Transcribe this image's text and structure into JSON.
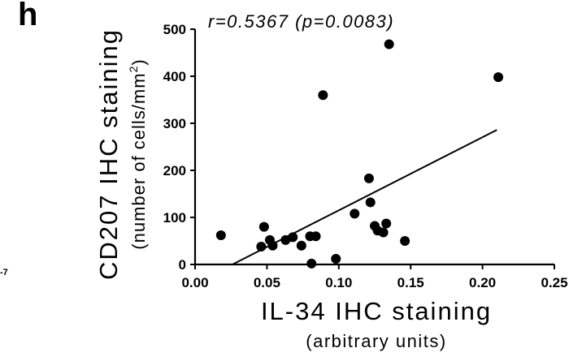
{
  "panel_label": "h",
  "corner_glyph": "-7",
  "chart_data": {
    "type": "scatter",
    "annotation": "r=0.5367 (p=0.0083)",
    "xlabel": "IL-34 IHC staining",
    "xlabel_sub": "(arbitrary units)",
    "ylabel": "CD207 IHC staining",
    "ylabel_sub": "(number of cells/mm",
    "ylabel_sub_sup": "2",
    "ylabel_sub_end": ")",
    "xlim": [
      0,
      0.25
    ],
    "ylim": [
      0,
      500
    ],
    "x_ticks": [
      0.0,
      0.05,
      0.1,
      0.15,
      0.2,
      0.25
    ],
    "x_tick_labels": [
      "0.00",
      "0.05",
      "0.10",
      "0.15",
      "0.20",
      "0.25"
    ],
    "y_ticks": [
      0,
      100,
      200,
      300,
      400,
      500
    ],
    "y_tick_labels": [
      "0",
      "100",
      "200",
      "300",
      "400",
      "500"
    ],
    "points": [
      {
        "x": 0.018,
        "y": 62
      },
      {
        "x": 0.046,
        "y": 38
      },
      {
        "x": 0.048,
        "y": 80
      },
      {
        "x": 0.052,
        "y": 52
      },
      {
        "x": 0.054,
        "y": 40
      },
      {
        "x": 0.063,
        "y": 52
      },
      {
        "x": 0.068,
        "y": 58
      },
      {
        "x": 0.074,
        "y": 40
      },
      {
        "x": 0.08,
        "y": 60
      },
      {
        "x": 0.081,
        "y": 2
      },
      {
        "x": 0.084,
        "y": 60
      },
      {
        "x": 0.089,
        "y": 360
      },
      {
        "x": 0.098,
        "y": 12
      },
      {
        "x": 0.111,
        "y": 108
      },
      {
        "x": 0.121,
        "y": 183
      },
      {
        "x": 0.122,
        "y": 132
      },
      {
        "x": 0.125,
        "y": 82
      },
      {
        "x": 0.127,
        "y": 72
      },
      {
        "x": 0.131,
        "y": 68
      },
      {
        "x": 0.133,
        "y": 87
      },
      {
        "x": 0.135,
        "y": 468
      },
      {
        "x": 0.146,
        "y": 50
      },
      {
        "x": 0.211,
        "y": 398
      }
    ],
    "fit_line": {
      "x": [
        0.026,
        0.21
      ],
      "y": [
        0,
        286
      ]
    }
  }
}
